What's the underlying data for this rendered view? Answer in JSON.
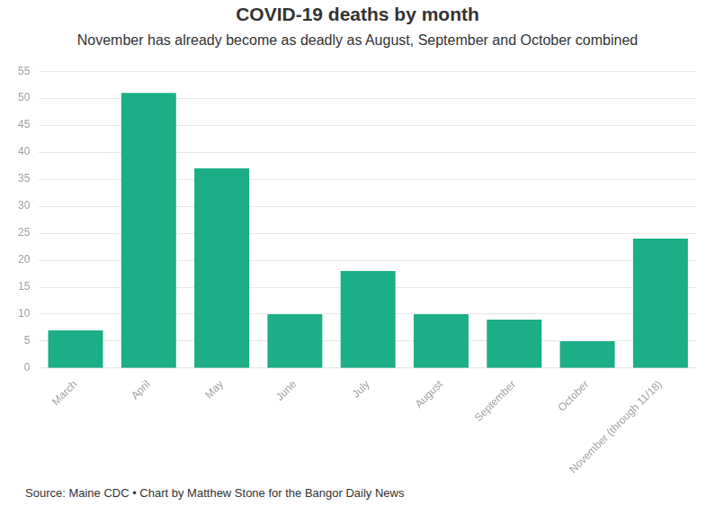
{
  "chart_data": {
    "type": "bar",
    "title": "COVID-19 deaths by month",
    "subtitle": "November has already become as deadly as August, September and October combined",
    "categories": [
      "March",
      "April",
      "May",
      "June",
      "July",
      "August",
      "September",
      "October",
      "November (through 11/18)"
    ],
    "values": [
      7,
      51,
      37,
      10,
      18,
      10,
      9,
      5,
      24
    ],
    "color": "#1cae86",
    "ylim": [
      0,
      55
    ],
    "yticks": [
      0,
      5,
      10,
      15,
      20,
      25,
      30,
      35,
      40,
      45,
      50,
      55
    ],
    "grid": true,
    "source": "Source: Maine CDC • Chart by Matthew Stone for the Bangor Daily News"
  }
}
